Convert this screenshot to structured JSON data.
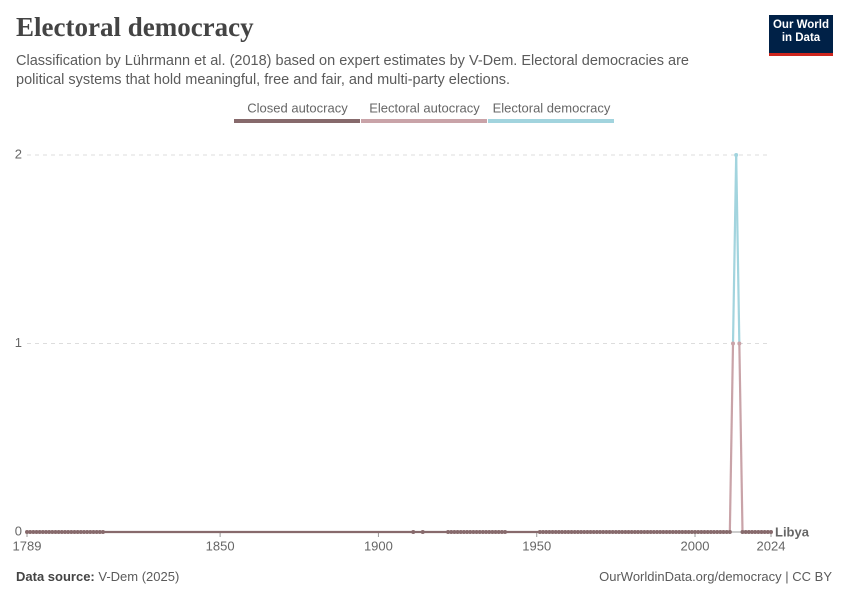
{
  "chart_data": {
    "type": "line",
    "title": "Electoral democracy",
    "subtitle": "Classification by Lührmann et al. (2018) based on expert estimates by V-Dem. Electoral democracies are political systems that hold meaningful, free and fair, and multi-party elections.",
    "logo": [
      "Our World",
      "in Data"
    ],
    "legend": [
      {
        "name": "Closed autocracy",
        "color": "#876a6c"
      },
      {
        "name": "Electoral autocracy",
        "color": "#c9a3a8"
      },
      {
        "name": "Electoral democracy",
        "color": "#a2d4de"
      }
    ],
    "x": [
      1789,
      1790,
      1791,
      1792,
      1793,
      1794,
      1795,
      1796,
      1797,
      1798,
      1799,
      1800,
      1801,
      1802,
      1803,
      1804,
      1805,
      1806,
      1807,
      1808,
      1809,
      1810,
      1811,
      1812,
      1813,
      1911,
      1914,
      1922,
      1923,
      1924,
      1925,
      1926,
      1927,
      1928,
      1929,
      1930,
      1931,
      1932,
      1933,
      1934,
      1935,
      1936,
      1937,
      1938,
      1939,
      1940,
      1951,
      1952,
      1953,
      1954,
      1955,
      1956,
      1957,
      1958,
      1959,
      1960,
      1961,
      1962,
      1963,
      1964,
      1965,
      1966,
      1967,
      1968,
      1969,
      1970,
      1971,
      1972,
      1973,
      1974,
      1975,
      1976,
      1977,
      1978,
      1979,
      1980,
      1981,
      1982,
      1983,
      1984,
      1985,
      1986,
      1987,
      1988,
      1989,
      1990,
      1991,
      1992,
      1993,
      1994,
      1995,
      1996,
      1997,
      1998,
      1999,
      2000,
      2001,
      2002,
      2003,
      2004,
      2005,
      2006,
      2007,
      2008,
      2009,
      2010,
      2011,
      2012,
      2013,
      2014,
      2015,
      2016,
      2017,
      2018,
      2019,
      2020,
      2021,
      2022,
      2023,
      2024
    ],
    "series": [
      {
        "name": "Libya",
        "color": "#a2706f",
        "values": [
          0,
          0,
          0,
          0,
          0,
          0,
          0,
          0,
          0,
          0,
          0,
          0,
          0,
          0,
          0,
          0,
          0,
          0,
          0,
          0,
          0,
          0,
          0,
          0,
          0,
          0,
          0,
          0,
          0,
          0,
          0,
          0,
          0,
          0,
          0,
          0,
          0,
          0,
          0,
          0,
          0,
          0,
          0,
          0,
          0,
          0,
          0,
          0,
          0,
          0,
          0,
          0,
          0,
          0,
          0,
          0,
          0,
          0,
          0,
          0,
          0,
          0,
          0,
          0,
          0,
          0,
          0,
          0,
          0,
          0,
          0,
          0,
          0,
          0,
          0,
          0,
          0,
          0,
          0,
          0,
          0,
          0,
          0,
          0,
          0,
          0,
          0,
          0,
          0,
          0,
          0,
          0,
          0,
          0,
          0,
          0,
          0,
          0,
          0,
          0,
          0,
          0,
          0,
          0,
          0,
          0,
          0,
          1,
          2,
          1,
          0,
          0,
          0,
          0,
          0,
          0,
          0,
          0,
          0,
          0
        ]
      }
    ],
    "xlim": [
      1789,
      2024
    ],
    "xticks": [
      1789,
      1850,
      1900,
      1950,
      2000,
      2024
    ],
    "ylim": [
      0,
      2
    ],
    "yticks": [
      0,
      1,
      2
    ],
    "grid": true,
    "source_label": "Data source:",
    "source": "V-Dem (2025)",
    "footer_right": "OurWorldinData.org/democracy | CC BY"
  }
}
